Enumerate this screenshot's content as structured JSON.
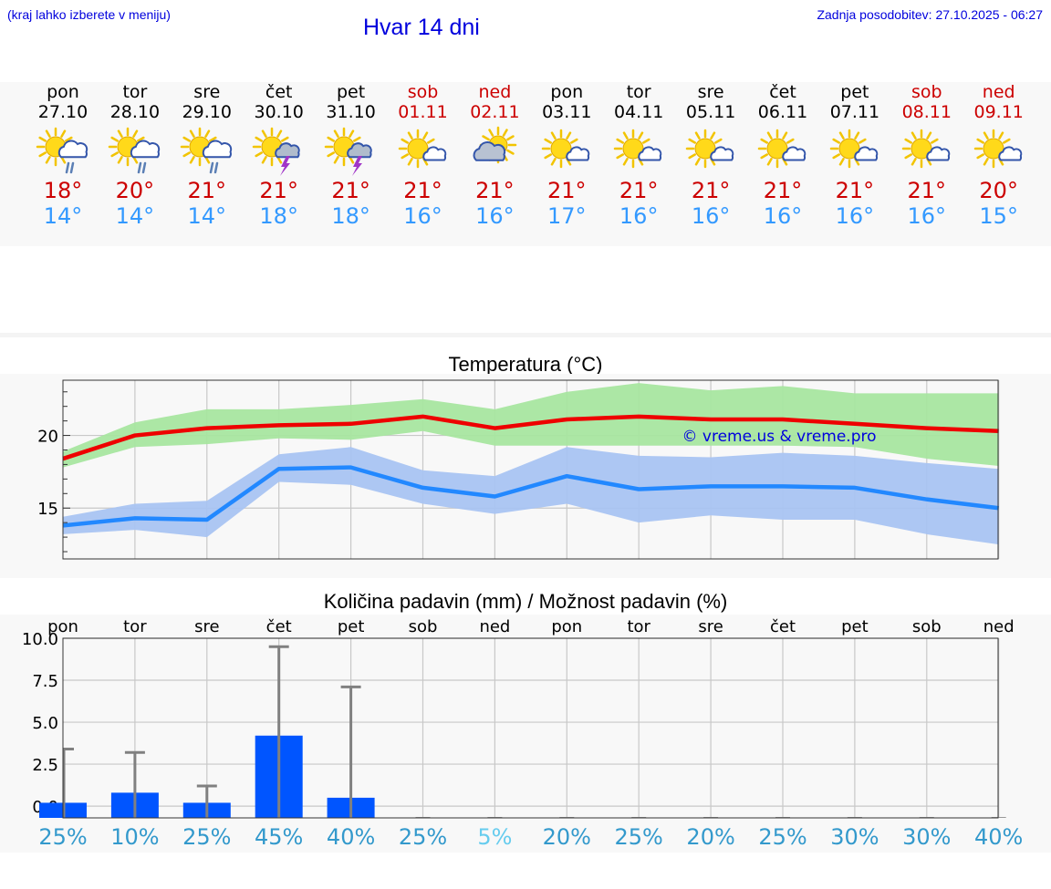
{
  "header": {
    "note": "(kraj lahko izberete v meniju)",
    "title": "Hvar 14 dni",
    "updated": "Zadnja posodobitev: 27.10.2025 - 06:27"
  },
  "days": [
    {
      "name": "pon",
      "date": "27.10",
      "weekend": false,
      "icon": "sun-cloud-rain-icon",
      "tmax": "18°",
      "tmin": "14°"
    },
    {
      "name": "tor",
      "date": "28.10",
      "weekend": false,
      "icon": "sun-cloud-rain-icon",
      "tmax": "20°",
      "tmin": "14°"
    },
    {
      "name": "sre",
      "date": "29.10",
      "weekend": false,
      "icon": "sun-cloud-rain-icon",
      "tmax": "21°",
      "tmin": "14°"
    },
    {
      "name": "čet",
      "date": "30.10",
      "weekend": false,
      "icon": "sun-cloud-thunder-icon",
      "tmax": "21°",
      "tmin": "18°"
    },
    {
      "name": "pet",
      "date": "31.10",
      "weekend": false,
      "icon": "sun-cloud-thunder-icon",
      "tmax": "21°",
      "tmin": "18°"
    },
    {
      "name": "sob",
      "date": "01.11",
      "weekend": true,
      "icon": "sun-small-cloud-icon",
      "tmax": "21°",
      "tmin": "16°"
    },
    {
      "name": "ned",
      "date": "02.11",
      "weekend": true,
      "icon": "cloud-sun-icon",
      "tmax": "21°",
      "tmin": "16°"
    },
    {
      "name": "pon",
      "date": "03.11",
      "weekend": false,
      "icon": "sun-small-cloud-icon",
      "tmax": "21°",
      "tmin": "17°"
    },
    {
      "name": "tor",
      "date": "04.11",
      "weekend": false,
      "icon": "sun-small-cloud-icon",
      "tmax": "21°",
      "tmin": "16°"
    },
    {
      "name": "sre",
      "date": "05.11",
      "weekend": false,
      "icon": "sun-small-cloud-icon",
      "tmax": "21°",
      "tmin": "16°"
    },
    {
      "name": "čet",
      "date": "06.11",
      "weekend": false,
      "icon": "sun-small-cloud-icon",
      "tmax": "21°",
      "tmin": "16°"
    },
    {
      "name": "pet",
      "date": "07.11",
      "weekend": false,
      "icon": "sun-small-cloud-icon",
      "tmax": "21°",
      "tmin": "16°"
    },
    {
      "name": "sob",
      "date": "08.11",
      "weekend": true,
      "icon": "sun-small-cloud-icon",
      "tmax": "21°",
      "tmin": "16°"
    },
    {
      "name": "ned",
      "date": "09.11",
      "weekend": true,
      "icon": "sun-small-cloud-icon",
      "tmax": "20°",
      "tmin": "15°"
    }
  ],
  "colors": {
    "weekend": "#cc0000",
    "max_temp": "#cc0000",
    "min_temp": "#3399ff",
    "max_line": "#ee0000",
    "max_band": "#a8e6a0",
    "min_line": "#2288ff",
    "min_band": "#a9c4f2",
    "bar": "#0055ff",
    "errorbar": "#808080",
    "pct_normal": "#3399cc",
    "pct_low": "#66ccee"
  },
  "chart_data": [
    {
      "type": "line",
      "title": "Temperatura (°C)",
      "watermark": "© vreme.us & vreme.pro",
      "categories": [
        "27.10",
        "28.10",
        "29.10",
        "30.10",
        "31.10",
        "01.11",
        "02.11",
        "03.11",
        "04.11",
        "05.11",
        "06.11",
        "07.11",
        "08.11",
        "09.11"
      ],
      "ylim": [
        11.5,
        23.8
      ],
      "yticks": [
        15,
        20
      ],
      "grid": true,
      "series": [
        {
          "values": [
            18.4,
            20.0,
            20.5,
            20.7,
            20.8,
            21.3,
            20.5,
            21.1,
            21.3,
            21.1,
            21.1,
            20.8,
            20.5,
            20.3
          ],
          "band_low": [
            17.8,
            19.2,
            19.4,
            19.8,
            19.7,
            20.3,
            19.3,
            19.3,
            19.3,
            19.3,
            19.3,
            19.2,
            18.4,
            17.9
          ],
          "band_high": [
            18.9,
            20.9,
            21.8,
            21.8,
            22.1,
            22.5,
            21.8,
            23.0,
            23.6,
            23.1,
            23.4,
            22.9,
            22.9,
            22.9
          ]
        },
        {
          "values": [
            13.8,
            14.3,
            14.2,
            17.7,
            17.8,
            16.4,
            15.8,
            17.2,
            16.3,
            16.5,
            16.5,
            16.4,
            15.6,
            15.0
          ],
          "band_low": [
            13.2,
            13.5,
            13.0,
            16.8,
            16.6,
            15.3,
            14.6,
            15.3,
            14.0,
            14.5,
            14.2,
            14.2,
            13.2,
            12.5
          ],
          "band_high": [
            14.4,
            15.3,
            15.5,
            18.7,
            19.2,
            17.6,
            17.2,
            19.2,
            18.6,
            18.5,
            18.8,
            18.6,
            18.1,
            17.7
          ]
        }
      ]
    },
    {
      "type": "bar",
      "title": "Količina padavin (mm) / Možnost padavin (%)",
      "categories": [
        "pon",
        "tor",
        "sre",
        "čet",
        "pet",
        "sob",
        "ned",
        "pon",
        "tor",
        "sre",
        "čet",
        "pet",
        "sob",
        "ned"
      ],
      "ylim": [
        -0.7,
        10.0
      ],
      "yticks": [
        "0.0",
        "2.5",
        "5.0",
        "7.5",
        "10.0"
      ],
      "values": [
        0.2,
        0.8,
        0.2,
        4.2,
        0.5,
        0,
        0,
        0,
        0,
        0,
        0,
        0,
        0,
        0
      ],
      "error_high": [
        3.4,
        3.2,
        1.2,
        9.5,
        7.1,
        0,
        0,
        0,
        0,
        0,
        0,
        0,
        0,
        0
      ],
      "probability": [
        "25%",
        "10%",
        "25%",
        "45%",
        "40%",
        "25%",
        "5%",
        "20%",
        "25%",
        "20%",
        "25%",
        "30%",
        "30%",
        "40%"
      ]
    }
  ]
}
